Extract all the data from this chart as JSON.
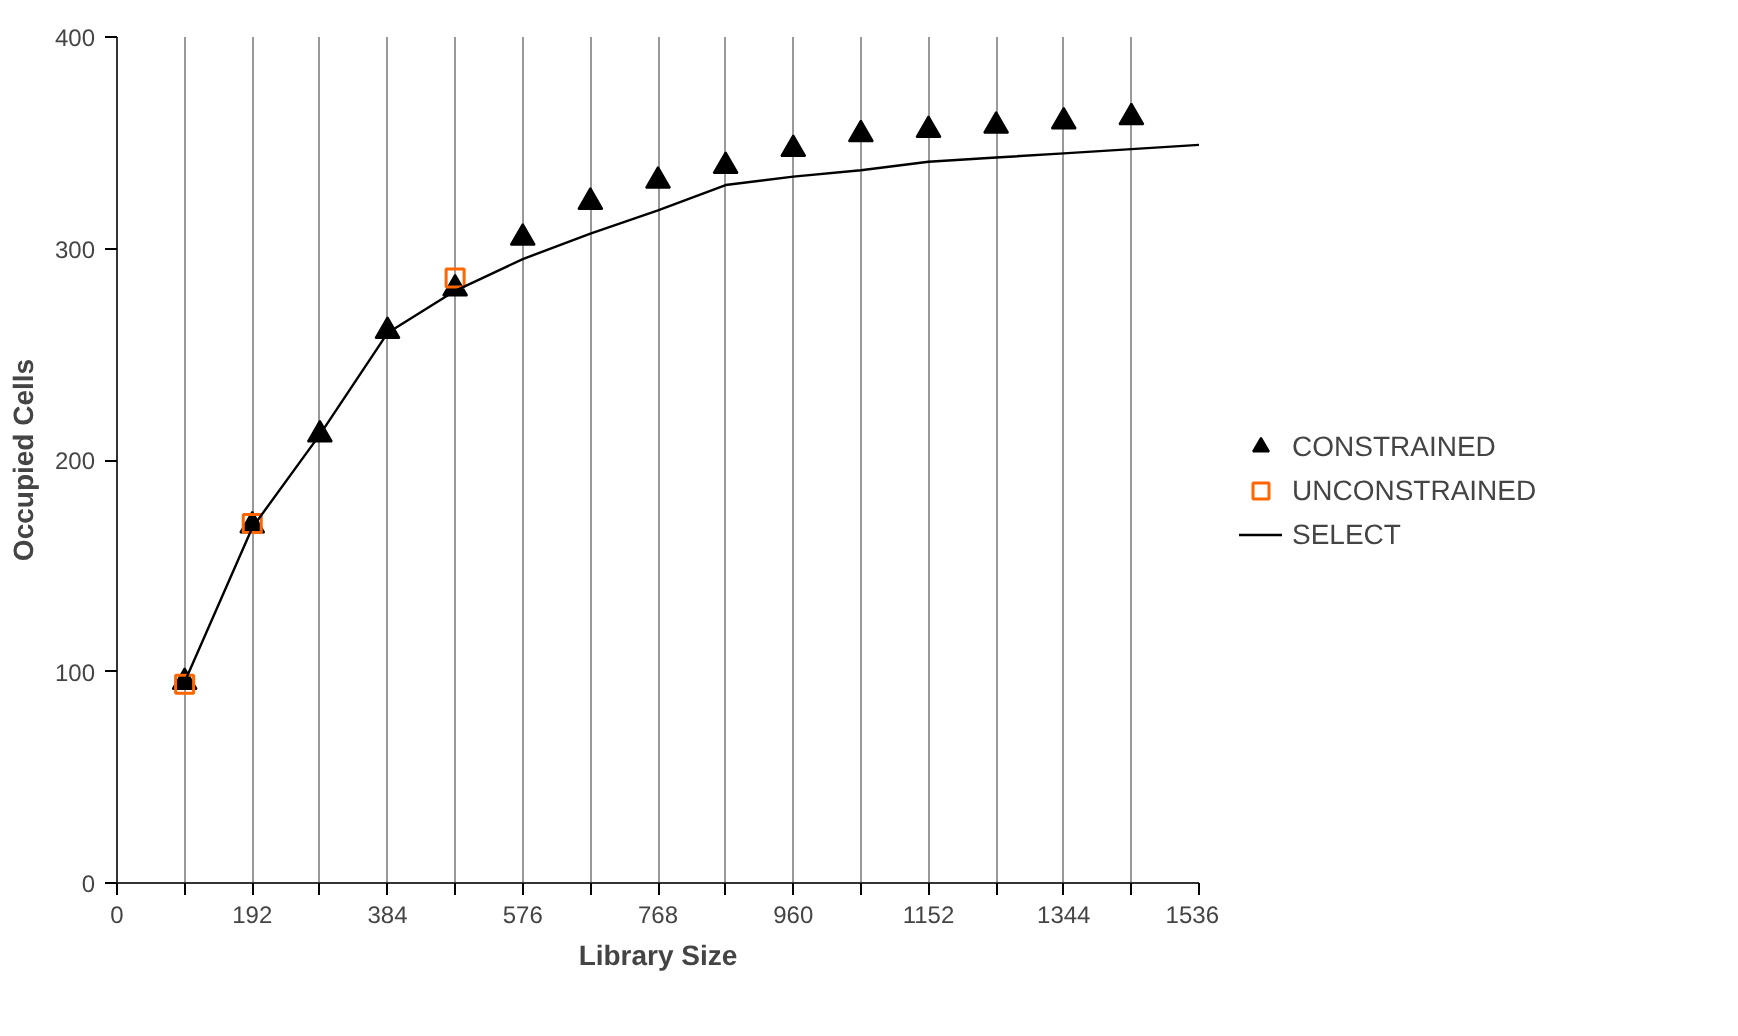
{
  "chart_data": {
    "type": "scatter",
    "xlabel": "Library Size",
    "ylabel": "Occupied Cells",
    "xlim": [
      0,
      1536
    ],
    "ylim": [
      0,
      400
    ],
    "xticks": [
      0,
      {
        "value": 96,
        "label": null
      },
      192,
      {
        "value": 288,
        "label": null
      },
      384,
      {
        "value": 480,
        "label": null
      },
      576,
      {
        "value": 672,
        "label": null
      },
      768,
      {
        "value": 864,
        "label": null
      },
      960,
      {
        "value": 1056,
        "label": null
      },
      1152,
      {
        "value": 1248,
        "label": null
      },
      1344,
      {
        "value": 1440,
        "label": null
      },
      1536
    ],
    "yticks": [
      0,
      100,
      200,
      300,
      400
    ],
    "grid": "x",
    "legend": "right",
    "series": [
      {
        "name": "CONSTRAINED",
        "type": "scatter",
        "marker": "triangle",
        "color": "#000000",
        "x": [
          96,
          192,
          288,
          384,
          480,
          576,
          672,
          768,
          864,
          960,
          1056,
          1152,
          1248,
          1344,
          1440
        ],
        "values": [
          95,
          169,
          212,
          261,
          281,
          305,
          322,
          332,
          339,
          347,
          354,
          356,
          358,
          360,
          362
        ]
      },
      {
        "name": "UNCONSTRAINED",
        "type": "scatter",
        "marker": "square",
        "color": "#ff6600",
        "x": [
          96,
          192,
          480
        ],
        "values": [
          94,
          170,
          286
        ]
      },
      {
        "name": "SELECT",
        "type": "line",
        "marker": "none",
        "color": "#000000",
        "x": [
          96,
          192,
          288,
          384,
          480,
          576,
          672,
          768,
          864,
          960,
          1056,
          1152,
          1248,
          1344,
          1440,
          1536
        ],
        "values": [
          95,
          168,
          212,
          260,
          280,
          295,
          307,
          318,
          330,
          334,
          337,
          341,
          343,
          345,
          347,
          349
        ]
      }
    ]
  }
}
